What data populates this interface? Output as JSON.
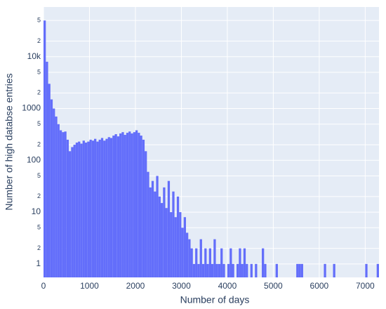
{
  "chart_data": {
    "type": "histogram",
    "x_label": "Number of days",
    "y_label": "Number of high databse entries",
    "color": "#636efa",
    "grid": true,
    "log_y": true,
    "xlim": [
      0,
      7300
    ],
    "ylim": [
      0.55,
      91000
    ],
    "xticks": [
      0,
      1000,
      2000,
      3000,
      4000,
      5000,
      6000,
      7000
    ],
    "yticks": [
      1,
      2,
      5,
      10,
      {
        "value": 20,
        "label": "2"
      },
      {
        "value": 50,
        "label": "5"
      },
      100,
      {
        "value": 200,
        "label": "2"
      },
      {
        "value": 500,
        "label": "5"
      },
      1000,
      {
        "value": 2000,
        "label": "2"
      },
      {
        "value": 5000,
        "label": "5"
      },
      {
        "value": 10000,
        "label": "10k"
      },
      {
        "value": 20000,
        "label": "2"
      },
      {
        "value": 50000,
        "label": "5"
      }
    ],
    "bins": [
      0,
      50,
      100,
      150,
      200,
      250,
      300,
      350,
      400,
      450,
      500,
      550,
      600,
      650,
      700,
      750,
      800,
      850,
      900,
      950,
      1000,
      1050,
      1100,
      1150,
      1200,
      1250,
      1300,
      1350,
      1400,
      1450,
      1500,
      1550,
      1600,
      1650,
      1700,
      1750,
      1800,
      1850,
      1900,
      1950,
      2000,
      2050,
      2100,
      2150,
      2200,
      2250,
      2300,
      2350,
      2400,
      2450,
      2500,
      2550,
      2600,
      2650,
      2700,
      2750,
      2800,
      2850,
      2900,
      2950,
      3000,
      3050,
      3100,
      3150,
      3200,
      3250,
      3300,
      3350,
      3400,
      3450,
      3500,
      3550,
      3600,
      3650,
      3700,
      3750,
      3800,
      3850,
      3900,
      3950,
      4000,
      4050,
      4100,
      4150,
      4200,
      4250,
      4300,
      4350,
      4400,
      4450,
      4500,
      4550,
      4600,
      4650,
      4700,
      4750,
      4800,
      4850,
      4900,
      4950,
      5000,
      5050,
      5100,
      5150,
      5200,
      5250,
      5300,
      5350,
      5400,
      5450,
      5500,
      5550,
      5600,
      5650,
      5700,
      5750,
      5800,
      5850,
      5900,
      5950,
      6000,
      6050,
      6100,
      6150,
      6200,
      6250,
      6300,
      6350,
      6400,
      6450,
      6500,
      6550,
      6600,
      6650,
      6700,
      6750,
      6800,
      6850,
      6900,
      6950,
      7000,
      7050,
      7100,
      7150,
      7200,
      7250,
      7300
    ],
    "counts": [
      50000,
      8000,
      3000,
      1500,
      1000,
      700,
      500,
      380,
      350,
      360,
      250,
      150,
      180,
      200,
      220,
      230,
      210,
      240,
      220,
      230,
      250,
      240,
      260,
      230,
      250,
      270,
      240,
      260,
      280,
      270,
      300,
      320,
      290,
      330,
      350,
      310,
      340,
      360,
      330,
      350,
      380,
      340,
      300,
      250,
      150,
      60,
      30,
      40,
      25,
      50,
      20,
      15,
      30,
      12,
      40,
      10,
      25,
      8,
      20,
      10,
      5,
      8,
      4,
      3,
      2,
      1,
      2,
      1,
      3,
      1,
      2,
      1,
      2,
      1,
      3,
      1,
      1,
      2,
      1,
      0,
      1,
      2,
      1,
      0,
      1,
      2,
      1,
      2,
      1,
      0,
      1,
      0,
      1,
      0,
      0,
      2,
      1,
      0,
      0,
      0,
      0,
      1,
      0,
      0,
      0,
      0,
      0,
      0,
      0,
      0,
      1,
      1,
      1,
      0,
      0,
      0,
      0,
      0,
      0,
      0,
      0,
      0,
      1,
      0,
      0,
      0,
      1,
      0,
      0,
      0,
      0,
      0,
      0,
      0,
      0,
      0,
      0,
      0,
      0,
      0,
      1,
      0,
      0,
      0,
      0,
      1
    ]
  }
}
